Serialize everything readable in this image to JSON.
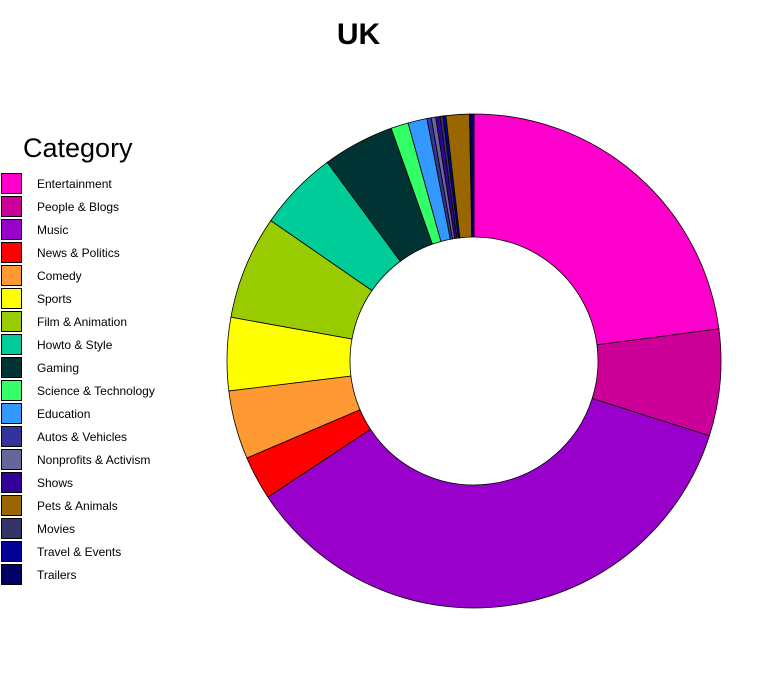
{
  "chart_data": {
    "type": "pie",
    "variant": "donut",
    "title": "UK",
    "legend_title": "Category",
    "legend_position": "left",
    "categories": [
      "Entertainment",
      "People & Blogs",
      "Music",
      "News & Politics",
      "Comedy",
      "Sports",
      "Film & Animation",
      "Howto & Style",
      "Gaming",
      "Science & Technology",
      "Education",
      "Autos & Vehicles",
      "Nonprofits & Activism",
      "Shows",
      "Pets & Animals",
      "Movies",
      "Travel & Events",
      "Trailers"
    ],
    "colors": [
      "#FF00CC",
      "#CC0099",
      "#9900CC",
      "#FF0000",
      "#FF9933",
      "#FFFF00",
      "#99CC00",
      "#00CC99",
      "#003333",
      "#33FF66",
      "#3399FF",
      "#333399",
      "#666699",
      "#330099",
      "#996600",
      "#333366",
      "#000099",
      "#000066"
    ],
    "legend_order": [
      "Entertainment",
      "People & Blogs",
      "Music",
      "News & Politics",
      "Comedy",
      "Sports",
      "Film & Animation",
      "Howto & Style",
      "Gaming",
      "Science & Technology",
      "Education",
      "Autos & Vehicles",
      "Nonprofits & Activism",
      "Shows",
      "Pets & Animals",
      "Movies",
      "Travel & Events",
      "Trailers"
    ],
    "slice_order": [
      "Entertainment",
      "People & Blogs",
      "Music",
      "News & Politics",
      "Comedy",
      "Sports",
      "Film & Animation",
      "Howto & Style",
      "Gaming",
      "Science & Technology",
      "Education",
      "Autos & Vehicles",
      "Nonprofits & Activism",
      "Shows",
      "Movies",
      "Travel & Events",
      "Pets & Animals",
      "Trailers"
    ],
    "values": [
      24.0,
      7.3,
      37.5,
      3.0,
      4.7,
      5.0,
      7.1,
      5.5,
      4.9,
      1.2,
      1.3,
      0.3,
      0.3,
      0.3,
      1.6,
      0.2,
      0.2,
      0.3
    ]
  }
}
